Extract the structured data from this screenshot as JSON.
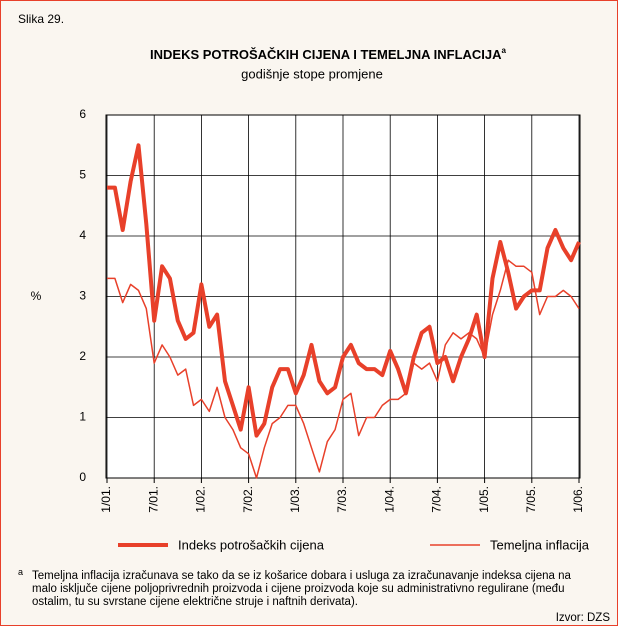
{
  "chart_data": {
    "type": "line",
    "figure_label": "Slika 29.",
    "title": "INDEKS POTROŠAČKIH CIJENA I TEMELJNA INFLACIJA",
    "title_note": "a",
    "subtitle": "godišnje stope promjene",
    "y_label": "%",
    "categories": [
      "1/01.",
      null,
      null,
      null,
      null,
      null,
      "7/01.",
      null,
      null,
      null,
      null,
      null,
      "1/02.",
      null,
      null,
      null,
      null,
      null,
      "7/02.",
      null,
      null,
      null,
      null,
      null,
      "1/03.",
      null,
      null,
      null,
      null,
      null,
      "7/03.",
      null,
      null,
      null,
      null,
      null,
      "1/04.",
      null,
      null,
      null,
      null,
      null,
      "7/04.",
      null,
      null,
      null,
      null,
      null,
      "1/05.",
      null,
      null,
      null,
      null,
      null,
      "7/05.",
      null,
      null,
      null,
      null,
      null,
      "1/06."
    ],
    "series": [
      {
        "name": "Indeks potrošačkih cijena",
        "color": "#e8402a",
        "width": 4,
        "values": [
          4.8,
          4.8,
          4.1,
          4.9,
          5.5,
          4.2,
          2.6,
          3.5,
          3.3,
          2.6,
          2.3,
          2.4,
          3.2,
          2.5,
          2.7,
          1.6,
          1.2,
          0.8,
          1.5,
          0.7,
          0.9,
          1.5,
          1.8,
          1.8,
          1.4,
          1.7,
          2.2,
          1.6,
          1.4,
          1.5,
          2.0,
          2.2,
          1.9,
          1.8,
          1.8,
          1.7,
          2.1,
          1.8,
          1.4,
          2.0,
          2.4,
          2.5,
          1.9,
          2.0,
          1.6,
          2.0,
          2.3,
          2.7,
          2.0,
          3.3,
          3.9,
          3.4,
          2.8,
          3.0,
          3.1,
          3.1,
          3.8,
          4.1,
          3.8,
          3.6,
          3.9
        ]
      },
      {
        "name": "Temeljna inflacija",
        "color": "#e8402a",
        "width": 1.5,
        "values": [
          3.3,
          3.3,
          2.9,
          3.2,
          3.1,
          2.8,
          1.9,
          2.2,
          2.0,
          1.7,
          1.8,
          1.2,
          1.3,
          1.1,
          1.5,
          1.0,
          0.8,
          0.5,
          0.4,
          0.0,
          0.5,
          0.9,
          1.0,
          1.2,
          1.2,
          0.9,
          0.5,
          0.1,
          0.6,
          0.8,
          1.3,
          1.4,
          0.7,
          1.0,
          1.0,
          1.2,
          1.3,
          1.3,
          1.4,
          1.9,
          1.8,
          1.9,
          1.6,
          2.2,
          2.4,
          2.3,
          2.4,
          2.3,
          2.0,
          2.7,
          3.1,
          3.6,
          3.5,
          3.5,
          3.4,
          2.7,
          3.0,
          3.0,
          3.1,
          3.0,
          2.8
        ]
      }
    ],
    "ylim": [
      0,
      6
    ],
    "yticks": [
      0,
      1,
      2,
      3,
      4,
      5,
      6
    ],
    "grid": true,
    "footnote": {
      "marker": "a",
      "text": "Temeljna inflacija izračunava se tako da se iz košarice dobara i usluga za izračunavanje indeksa cijena na malo isključe cijene poljoprivrednih proizvoda i cijene proizvoda koje su administrativno regulirane (među ostalim, tu su svrstane cijene električne struje i naftnih derivata)."
    },
    "source": "Izvor: DZS"
  }
}
